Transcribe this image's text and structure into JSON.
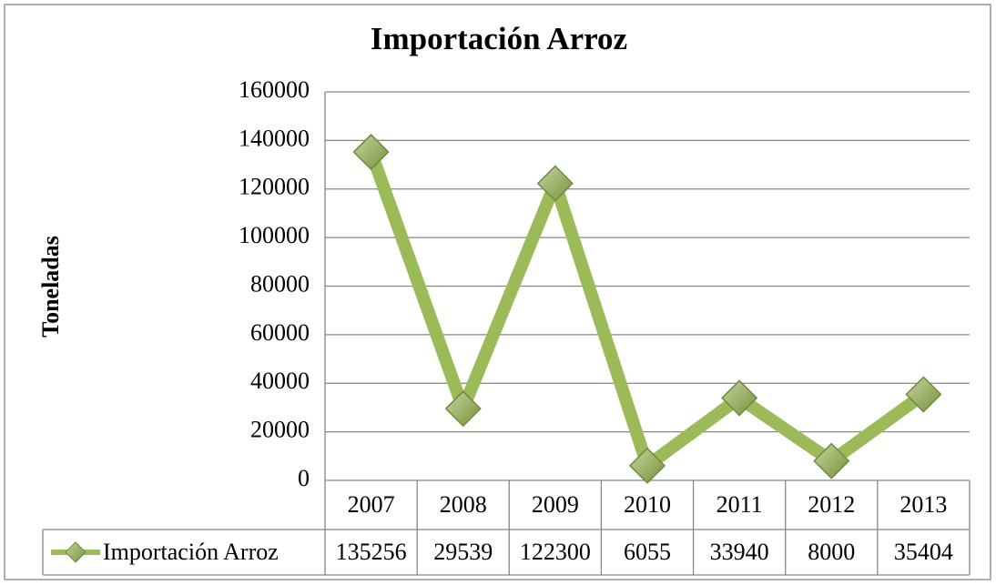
{
  "chart_data": {
    "type": "line",
    "title": "Importación Arroz",
    "y_label": "Toneladas",
    "categories": [
      "2007",
      "2008",
      "2009",
      "2010",
      "2011",
      "2012",
      "2013"
    ],
    "series": [
      {
        "name": "Importación Arroz",
        "color": "#9bbb59",
        "values": [
          135256,
          29539,
          122300,
          6055,
          33940,
          8000,
          35404
        ]
      }
    ],
    "ylim": [
      0,
      160000
    ],
    "yticks": [
      0,
      20000,
      40000,
      60000,
      80000,
      100000,
      120000,
      140000,
      160000
    ],
    "grid": true,
    "data_table": true
  }
}
